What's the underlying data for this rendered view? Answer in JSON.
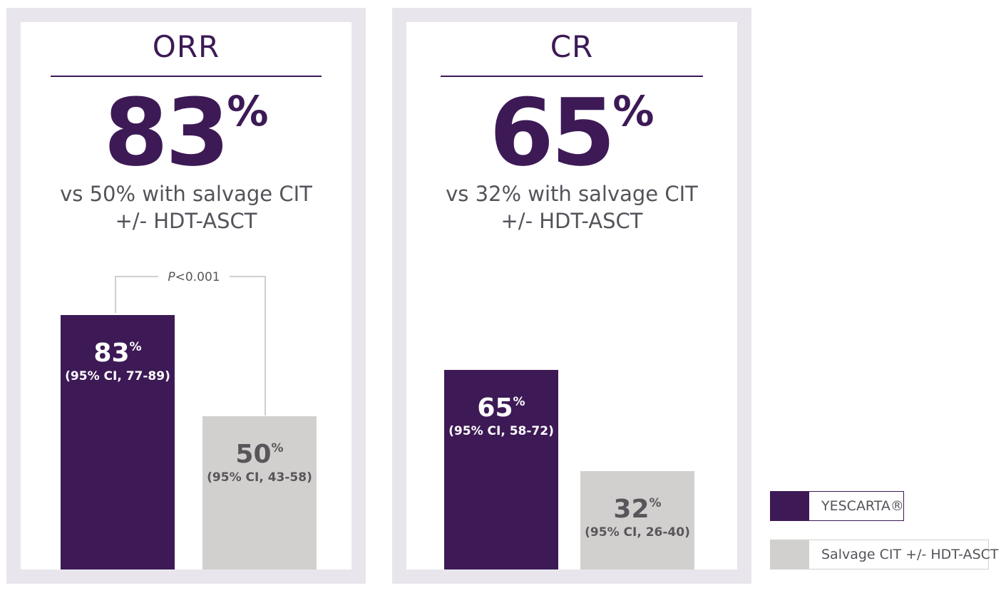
{
  "colors": {
    "primary": "#3d1a56",
    "secondary": "#d1d0ce",
    "panel_frame": "#e8e6ec",
    "text_gray": "#55535a"
  },
  "chart_data": [
    {
      "type": "bar",
      "title": "ORR",
      "headline": {
        "value": "83",
        "unit": "%"
      },
      "comparison_text": [
        "vs 50% with salvage CIT",
        "+/- HDT-ASCT"
      ],
      "categories": [
        "YESCARTA®",
        "Salvage CIT +/- HDT-ASCT"
      ],
      "values": [
        83,
        50
      ],
      "value_labels": [
        "83",
        "50"
      ],
      "unit": "%",
      "ci_labels": [
        "(95% CI, 77-89)",
        "(95% CI, 43-58)"
      ],
      "significance": {
        "prefix": "P",
        "text": "<0.001"
      },
      "ylim": [
        0,
        100
      ],
      "legend": "right"
    },
    {
      "type": "bar",
      "title": "CR",
      "headline": {
        "value": "65",
        "unit": "%"
      },
      "comparison_text": [
        "vs 32% with salvage CIT",
        "+/- HDT-ASCT"
      ],
      "categories": [
        "YESCARTA®",
        "Salvage CIT +/- HDT-ASCT"
      ],
      "values": [
        65,
        32
      ],
      "value_labels": [
        "65",
        "32"
      ],
      "unit": "%",
      "ci_labels": [
        "(95% CI, 58-72)",
        "(95% CI, 26-40)"
      ],
      "ylim": [
        0,
        100
      ],
      "legend": "right"
    }
  ],
  "legend": {
    "items": [
      {
        "label": "YESCARTA®",
        "color": "#3d1a56"
      },
      {
        "label": "Salvage CIT +/- HDT-ASCT",
        "color": "#d1d0ce"
      }
    ]
  }
}
